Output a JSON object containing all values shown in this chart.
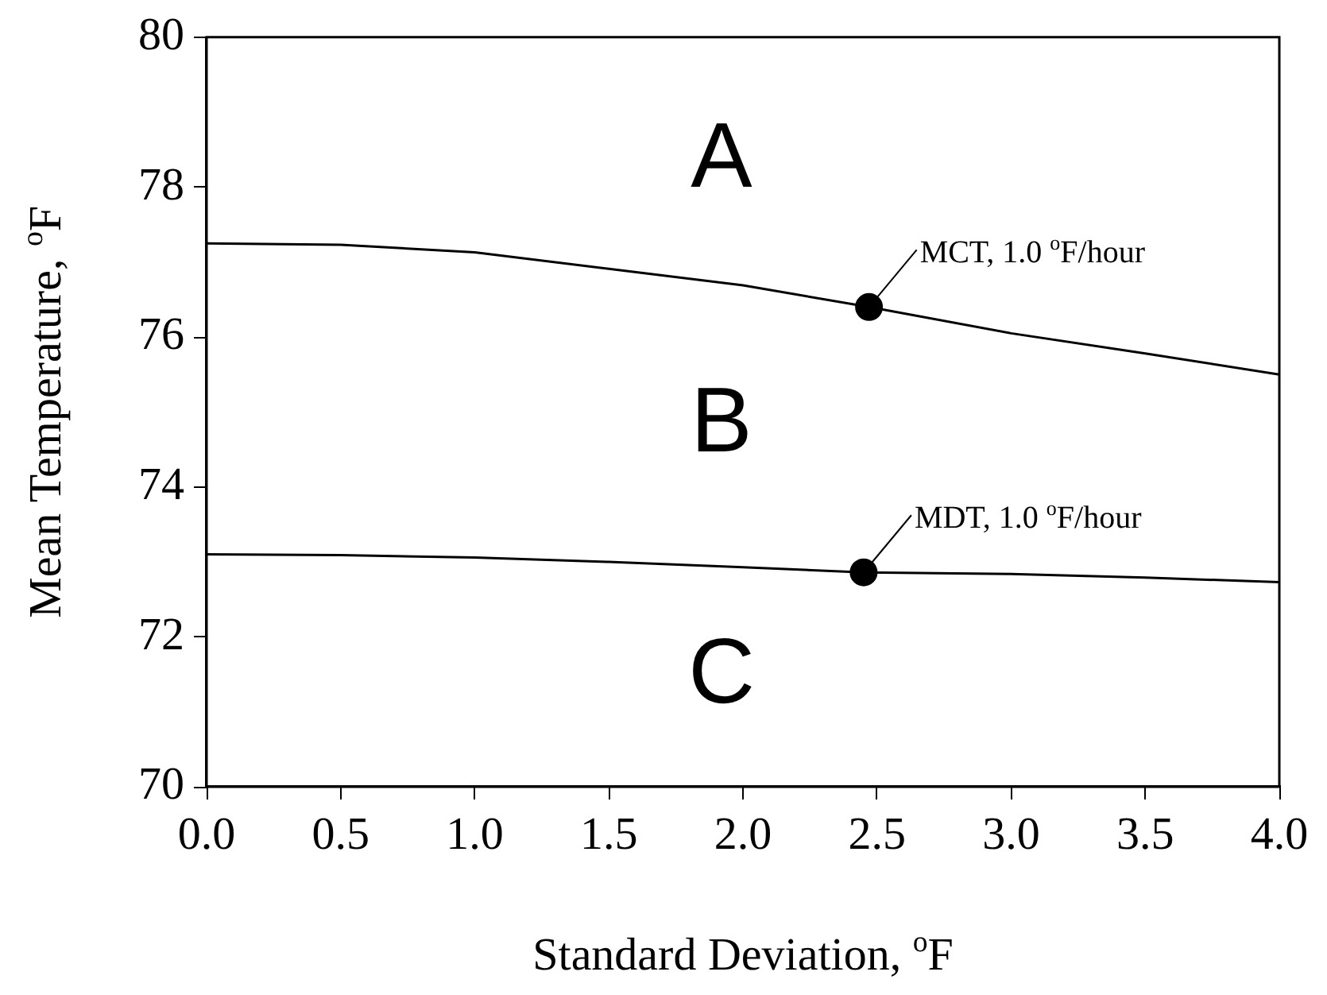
{
  "chart_data": {
    "type": "line",
    "xlabel": "Standard Deviation, $^{o}$F",
    "ylabel": "Mean Temperature, $^{o}$F",
    "xlim": [
      0,
      4
    ],
    "xticks": [
      {
        "value": 0,
        "label": "0.0"
      },
      {
        "value": 0.5,
        "label": "0.5"
      },
      {
        "value": 1,
        "label": "1.0"
      },
      {
        "value": 1.5,
        "label": "1.5"
      },
      {
        "value": 2,
        "label": "2.0"
      },
      {
        "value": 2.5,
        "label": "2.5"
      },
      {
        "value": 3,
        "label": "3.0"
      },
      {
        "value": 3.5,
        "label": "3.5"
      },
      {
        "value": 4,
        "label": "4.0"
      }
    ],
    "ylim": [
      70,
      80
    ],
    "yticks": [
      70,
      72,
      74,
      76,
      78,
      80
    ],
    "grid": false,
    "legend": false,
    "marker": "none",
    "line_style": "solid",
    "series": [
      {
        "color": "#000000",
        "x": [
          0,
          0.5,
          1,
          1.5,
          2,
          2.47,
          3,
          3.5,
          4
        ],
        "values": [
          77.25,
          77.23,
          77.13,
          76.91,
          76.69,
          76.4,
          76.05,
          75.78,
          75.5
        ]
      },
      {
        "color": "#000000",
        "x": [
          0,
          0.5,
          1,
          1.5,
          2,
          2.45,
          3,
          3.5,
          4
        ],
        "values": [
          73.1,
          73.09,
          73.06,
          73.0,
          72.93,
          72.86,
          72.84,
          72.79,
          72.73
        ]
      },
      {
        "type": "scatter",
        "color": "#000000",
        "marker": "circle",
        "x": [
          2.47,
          2.45
        ],
        "values": [
          76.4,
          72.86
        ]
      }
    ],
    "annotations": [
      {
        "text": "MCT, 1.0 $^{o}$F/hour",
        "x": 2.47,
        "y": 76.4
      },
      {
        "text": "MDT, 1.0 $^{o}$F/hour",
        "x": 2.45,
        "y": 72.86
      },
      "A",
      "B",
      "C"
    ]
  }
}
